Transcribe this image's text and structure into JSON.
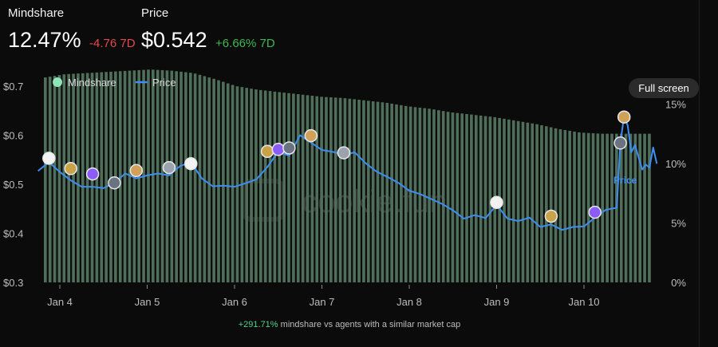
{
  "stats": {
    "mindshare": {
      "title": "Mindshare",
      "value": "12.47%",
      "change": "-4.76 7D",
      "change_color": "#e5484d"
    },
    "price": {
      "title": "Price",
      "value": "$0.542",
      "change": "+6.66% 7D",
      "change_color": "#3fb950"
    }
  },
  "full_screen_label": "Full screen",
  "watermark": "cookie.fun",
  "footnote": {
    "highlight": "+291.71%",
    "text": " mindshare vs agents with a similar market cap"
  },
  "colors": {
    "price_line": "#3d8ef0",
    "mindshare_bar": "#4f6f5a",
    "mindshare_legend": "#8ee6b8",
    "negative": "#e5484d",
    "positive": "#3fb950"
  },
  "chart_data": {
    "type": "bar",
    "legend": [
      {
        "name": "Mindshare",
        "marker": "dot"
      },
      {
        "name": "Price",
        "marker": "line"
      }
    ],
    "legend_position": "top-left",
    "x_ticks": [
      "Jan 4",
      "Jan 5",
      "Jan 6",
      "Jan 7",
      "Jan 8",
      "Jan 9",
      "Jan 10"
    ],
    "xlim": [
      "Jan 3 18:00",
      "Jan 10 20:00"
    ],
    "left_axis": {
      "ticks": [
        "$0.3",
        "$0.4",
        "$0.5",
        "$0.6",
        "$0.7"
      ],
      "ylim": [
        0.3,
        0.7
      ]
    },
    "right_axis": {
      "ticks": [
        "0%",
        "5%",
        "10%",
        "15%"
      ],
      "ylim": [
        0,
        16.5
      ]
    },
    "series": [
      {
        "name": "Mindshare",
        "type": "bar",
        "axis": "right",
        "points": [
          [
            "Jan 3 18:00",
            17.2
          ],
          [
            "Jan 4 00:00",
            17.5
          ],
          [
            "Jan 4 06:00",
            17.6
          ],
          [
            "Jan 4 12:00",
            17.7
          ],
          [
            "Jan 4 18:00",
            17.8
          ],
          [
            "Jan 5 00:00",
            17.9
          ],
          [
            "Jan 5 06:00",
            17.8
          ],
          [
            "Jan 5 12:00",
            17.6
          ],
          [
            "Jan 5 18:00",
            17.1
          ],
          [
            "Jan 6 00:00",
            16.5
          ],
          [
            "Jan 6 06:00",
            16.2
          ],
          [
            "Jan 6 12:00",
            16.0
          ],
          [
            "Jan 6 18:00",
            15.8
          ],
          [
            "Jan 7 00:00",
            15.6
          ],
          [
            "Jan 7 06:00",
            15.5
          ],
          [
            "Jan 7 12:00",
            15.3
          ],
          [
            "Jan 7 18:00",
            15.1
          ],
          [
            "Jan 8 00:00",
            14.8
          ],
          [
            "Jan 8 06:00",
            14.6
          ],
          [
            "Jan 8 12:00",
            14.3
          ],
          [
            "Jan 8 18:00",
            14.1
          ],
          [
            "Jan 9 00:00",
            13.9
          ],
          [
            "Jan 9 06:00",
            13.6
          ],
          [
            "Jan 9 12:00",
            13.3
          ],
          [
            "Jan 9 18:00",
            12.9
          ],
          [
            "Jan 10 00:00",
            12.6
          ],
          [
            "Jan 10 06:00",
            12.5
          ],
          [
            "Jan 10 12:00",
            12.5
          ],
          [
            "Jan 10 20:00",
            12.5
          ]
        ]
      },
      {
        "name": "Price",
        "type": "line",
        "axis": "left",
        "points": [
          [
            "Jan 3 18:00",
            0.527
          ],
          [
            "Jan 3 21:00",
            0.545
          ],
          [
            "Jan 4 00:00",
            0.525
          ],
          [
            "Jan 4 03:00",
            0.508
          ],
          [
            "Jan 4 06:00",
            0.495
          ],
          [
            "Jan 4 09:00",
            0.495
          ],
          [
            "Jan 4 12:00",
            0.492
          ],
          [
            "Jan 4 15:00",
            0.503
          ],
          [
            "Jan 4 18:00",
            0.522
          ],
          [
            "Jan 4 21:00",
            0.512
          ],
          [
            "Jan 5 00:00",
            0.518
          ],
          [
            "Jan 5 03:00",
            0.522
          ],
          [
            "Jan 5 06:00",
            0.518
          ],
          [
            "Jan 5 09:00",
            0.537
          ],
          [
            "Jan 5 12:00",
            0.545
          ],
          [
            "Jan 5 15:00",
            0.512
          ],
          [
            "Jan 5 18:00",
            0.496
          ],
          [
            "Jan 5 21:00",
            0.497
          ],
          [
            "Jan 6 00:00",
            0.495
          ],
          [
            "Jan 6 03:00",
            0.502
          ],
          [
            "Jan 6 06:00",
            0.51
          ],
          [
            "Jan 6 09:00",
            0.535
          ],
          [
            "Jan 6 12:00",
            0.567
          ],
          [
            "Jan 6 15:00",
            0.558
          ],
          [
            "Jan 6 18:00",
            0.6
          ],
          [
            "Jan 6 21:00",
            0.585
          ],
          [
            "Jan 7 00:00",
            0.57
          ],
          [
            "Jan 7 03:00",
            0.566
          ],
          [
            "Jan 7 06:00",
            0.56
          ],
          [
            "Jan 7 09:00",
            0.565
          ],
          [
            "Jan 7 12:00",
            0.543
          ],
          [
            "Jan 7 15:00",
            0.526
          ],
          [
            "Jan 7 18:00",
            0.515
          ],
          [
            "Jan 7 21:00",
            0.503
          ],
          [
            "Jan 8 00:00",
            0.487
          ],
          [
            "Jan 8 03:00",
            0.48
          ],
          [
            "Jan 8 06:00",
            0.47
          ],
          [
            "Jan 8 09:00",
            0.46
          ],
          [
            "Jan 8 12:00",
            0.447
          ],
          [
            "Jan 8 15:00",
            0.43
          ],
          [
            "Jan 8 18:00",
            0.437
          ],
          [
            "Jan 8 21:00",
            0.431
          ],
          [
            "Jan 9 00:00",
            0.458
          ],
          [
            "Jan 9 03:00",
            0.43
          ],
          [
            "Jan 9 06:00",
            0.425
          ],
          [
            "Jan 9 09:00",
            0.432
          ],
          [
            "Jan 9 12:00",
            0.413
          ],
          [
            "Jan 9 15:00",
            0.418
          ],
          [
            "Jan 9 18:00",
            0.407
          ],
          [
            "Jan 9 21:00",
            0.413
          ],
          [
            "Jan 10 00:00",
            0.414
          ],
          [
            "Jan 10 03:00",
            0.432
          ],
          [
            "Jan 10 06:00",
            0.448
          ],
          [
            "Jan 10 09:00",
            0.452
          ],
          [
            "Jan 10 10:00",
            0.585
          ],
          [
            "Jan 10 11:00",
            0.637
          ],
          [
            "Jan 10 12:00",
            0.62
          ],
          [
            "Jan 10 13:00",
            0.565
          ],
          [
            "Jan 10 14:00",
            0.58
          ],
          [
            "Jan 10 16:00",
            0.53
          ],
          [
            "Jan 10 17:00",
            0.54
          ],
          [
            "Jan 10 18:00",
            0.534
          ],
          [
            "Jan 10 19:00",
            0.575
          ],
          [
            "Jan 10 20:00",
            0.542
          ]
        ],
        "label": "Price"
      }
    ],
    "event_markers": [
      {
        "x": "Jan 3 21:00",
        "price": 0.553
      },
      {
        "x": "Jan 4 03:00",
        "price": 0.532
      },
      {
        "x": "Jan 4 09:00",
        "price": 0.521
      },
      {
        "x": "Jan 4 15:00",
        "price": 0.503
      },
      {
        "x": "Jan 4 21:00",
        "price": 0.528
      },
      {
        "x": "Jan 5 06:00",
        "price": 0.534
      },
      {
        "x": "Jan 5 12:00",
        "price": 0.542
      },
      {
        "x": "Jan 6 09:00",
        "price": 0.567
      },
      {
        "x": "Jan 6 12:00",
        "price": 0.571
      },
      {
        "x": "Jan 6 15:00",
        "price": 0.574
      },
      {
        "x": "Jan 6 21:00",
        "price": 0.599
      },
      {
        "x": "Jan 7 06:00",
        "price": 0.564
      },
      {
        "x": "Jan 9 00:00",
        "price": 0.463
      },
      {
        "x": "Jan 9 15:00",
        "price": 0.435
      },
      {
        "x": "Jan 10 03:00",
        "price": 0.443
      },
      {
        "x": "Jan 10 10:00",
        "price": 0.584
      },
      {
        "x": "Jan 10 11:00",
        "price": 0.637
      }
    ],
    "grid": false
  }
}
